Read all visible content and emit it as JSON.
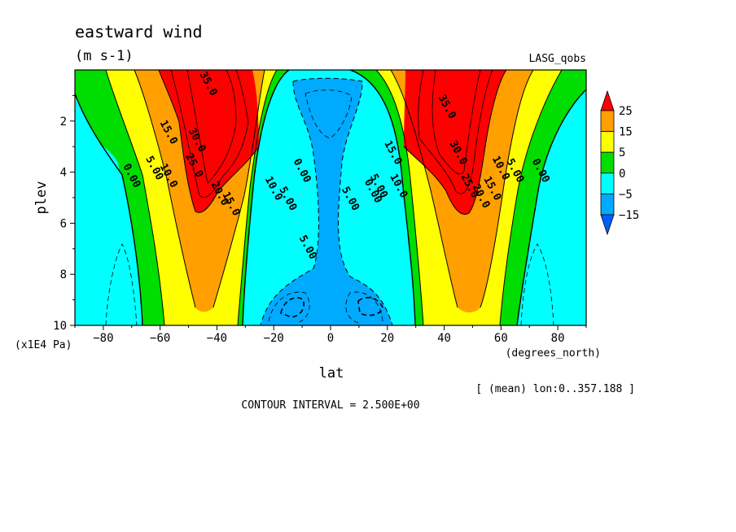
{
  "title": "eastward wind",
  "units": "(m s-1)",
  "source": "LASG_qobs",
  "x_unit": "(degrees_north)",
  "y_unit": "(x1E4 Pa)",
  "mean_note": "[ (mean) lon:0..357.188 ]",
  "contour_interval": "CONTOUR INTERVAL = 2.500E+00",
  "chart_data": {
    "type": "heatmap",
    "subtype": "filled contour (latitude-pressure cross section)",
    "title": "eastward wind",
    "units": "m s-1",
    "xlabel": "lat",
    "ylabel": "plev",
    "xlim": [
      -90,
      90
    ],
    "ylim": [
      10,
      0
    ],
    "y_reversed": true,
    "x_ticks": [
      -80,
      -60,
      -40,
      -20,
      0,
      20,
      40,
      60,
      80
    ],
    "y_ticks": [
      2,
      4,
      6,
      8,
      10
    ],
    "contour_interval": 2.5,
    "colorbar": {
      "labels": [
        "25",
        "15",
        "5",
        "0",
        "-5",
        "-15"
      ],
      "levels": [
        {
          "min": 25,
          "max": null,
          "color": "#ff0000"
        },
        {
          "min": 15,
          "max": 25,
          "color": "#ffa000"
        },
        {
          "min": 5,
          "max": 15,
          "color": "#ffff00"
        },
        {
          "min": 0,
          "max": 5,
          "color": "#00dd00"
        },
        {
          "min": -5,
          "max": 0,
          "color": "#00ffff"
        },
        {
          "min": -15,
          "max": -5,
          "color": "#00aaff"
        },
        {
          "min": null,
          "max": -15,
          "color": "#0060ff"
        }
      ]
    },
    "contour_labels": [
      {
        "text": "35.0",
        "lat": -44,
        "plev": 0.6
      },
      {
        "text": "15.0",
        "lat": -58,
        "plev": 2.5
      },
      {
        "text": "30.0",
        "lat": -48,
        "plev": 2.8
      },
      {
        "text": "25.0",
        "lat": -49,
        "plev": 3.8
      },
      {
        "text": "5.00",
        "lat": -63,
        "plev": 3.9
      },
      {
        "text": "0.00",
        "lat": -71,
        "plev": 4.2
      },
      {
        "text": "10.0",
        "lat": -58,
        "plev": 4.2
      },
      {
        "text": "20.0",
        "lat": -40,
        "plev": 4.9
      },
      {
        "text": "15.0",
        "lat": -36,
        "plev": 5.3
      },
      {
        "text": "10.0",
        "lat": -21,
        "plev": 4.7
      },
      {
        "text": "5.00",
        "lat": -16,
        "plev": 5.1
      },
      {
        "text": "0.00",
        "lat": -11,
        "plev": 4.0
      },
      {
        "text": "5.00",
        "lat": -9,
        "plev": 7.0
      },
      {
        "text": "5.00",
        "lat": 6,
        "plev": 5.1
      },
      {
        "text": "0.00",
        "lat": 14,
        "plev": 4.8
      },
      {
        "text": "5.00",
        "lat": 16,
        "plev": 4.6
      },
      {
        "text": "15.0",
        "lat": 21,
        "plev": 3.3
      },
      {
        "text": "10.0",
        "lat": 23,
        "plev": 4.6
      },
      {
        "text": "35.0",
        "lat": 40,
        "plev": 1.5
      },
      {
        "text": "30.0",
        "lat": 44,
        "plev": 3.3
      },
      {
        "text": "25.0",
        "lat": 48,
        "plev": 4.6
      },
      {
        "text": "20.0",
        "lat": 52,
        "plev": 5.0
      },
      {
        "text": "15.0",
        "lat": 56,
        "plev": 4.7
      },
      {
        "text": "10.0",
        "lat": 59,
        "plev": 3.9
      },
      {
        "text": "5.00",
        "lat": 64,
        "plev": 4.0
      },
      {
        "text": "0.00",
        "lat": 73,
        "plev": 4.0
      }
    ]
  }
}
